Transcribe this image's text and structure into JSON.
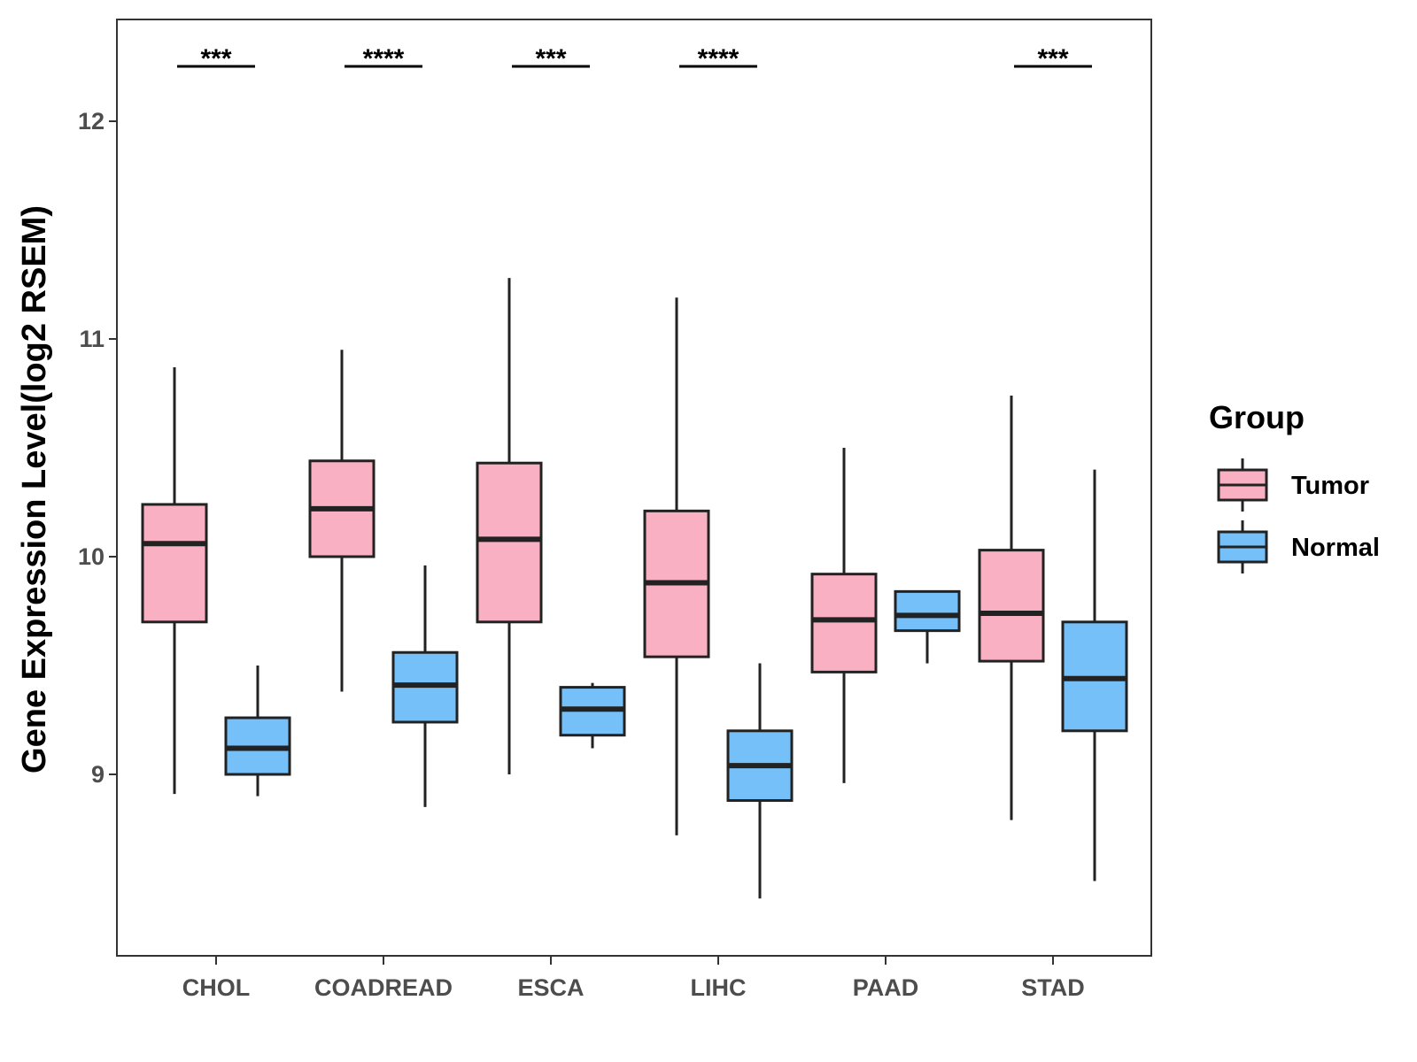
{
  "chart_data": {
    "type": "boxplot",
    "title": "",
    "xlabel": "",
    "ylabel": "Gene Expression Level(log2 RSEM)",
    "ylim": [
      8.2,
      12.47
    ],
    "yticks": [
      9,
      10,
      11,
      12
    ],
    "grid": false,
    "legend": {
      "title": "Group",
      "position": "right",
      "entries": [
        "Tumor",
        "Normal"
      ]
    },
    "colors": {
      "Tumor": "#F9B0C3",
      "Normal": "#75C0F8",
      "stroke": "#222222",
      "axis": "#333333"
    },
    "categories": [
      "CHOL",
      "COADREAD",
      "ESCA",
      "LIHC",
      "PAAD",
      "STAD"
    ],
    "series": [
      {
        "name": "Tumor",
        "boxes": [
          {
            "min": 8.91,
            "q1": 9.7,
            "median": 10.06,
            "q3": 10.24,
            "max": 10.87
          },
          {
            "min": 9.38,
            "q1": 10.0,
            "median": 10.22,
            "q3": 10.44,
            "max": 10.95
          },
          {
            "min": 9.0,
            "q1": 9.7,
            "median": 10.08,
            "q3": 10.43,
            "max": 11.28
          },
          {
            "min": 8.72,
            "q1": 9.54,
            "median": 9.88,
            "q3": 10.21,
            "max": 11.19
          },
          {
            "min": 8.96,
            "q1": 9.47,
            "median": 9.71,
            "q3": 9.92,
            "max": 10.5
          },
          {
            "min": 8.79,
            "q1": 9.52,
            "median": 9.74,
            "q3": 10.03,
            "max": 10.74
          }
        ]
      },
      {
        "name": "Normal",
        "boxes": [
          {
            "min": 8.9,
            "q1": 9.0,
            "median": 9.12,
            "q3": 9.26,
            "max": 9.5
          },
          {
            "min": 8.85,
            "q1": 9.24,
            "median": 9.41,
            "q3": 9.56,
            "max": 9.96
          },
          {
            "min": 9.12,
            "q1": 9.18,
            "median": 9.3,
            "q3": 9.4,
            "max": 9.42
          },
          {
            "min": 8.43,
            "q1": 8.88,
            "median": 9.04,
            "q3": 9.2,
            "max": 9.51
          },
          {
            "min": 9.51,
            "q1": 9.66,
            "median": 9.73,
            "q3": 9.84,
            "max": 9.84
          },
          {
            "min": 8.51,
            "q1": 9.2,
            "median": 9.44,
            "q3": 9.7,
            "max": 10.4
          }
        ]
      }
    ],
    "significance": [
      "***",
      "****",
      "***",
      "****",
      "",
      "***"
    ]
  }
}
